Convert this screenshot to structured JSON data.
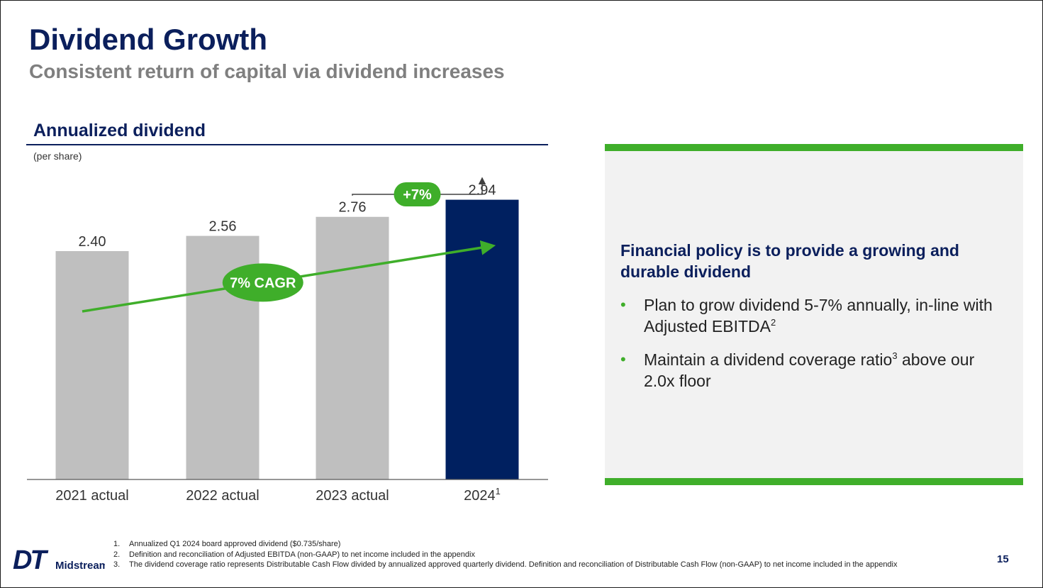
{
  "header": {
    "title": "Dividend Growth",
    "subtitle": "Consistent return of capital via dividend increases"
  },
  "section": {
    "title": "Annualized dividend",
    "unit_note": "(per share)"
  },
  "chart_data": {
    "type": "bar",
    "title": "Annualized dividend",
    "ylabel": "(per share)",
    "categories": [
      "2021 actual",
      "2022 actual",
      "2023 actual",
      "2024"
    ],
    "category_superscripts": [
      "",
      "",
      "",
      "1"
    ],
    "values": [
      2.4,
      2.56,
      2.76,
      2.94
    ],
    "value_labels": [
      "2.40",
      "2.56",
      "2.76",
      "2.94"
    ],
    "bar_colors": [
      "#bfbfbf",
      "#bfbfbf",
      "#bfbfbf",
      "#002060"
    ],
    "ylim": [
      0,
      3.25
    ],
    "grid": false,
    "annotations": {
      "cagr_label": "7% CAGR",
      "yoy_label": "+7%"
    }
  },
  "panel": {
    "heading": "Financial policy is to provide a growing and durable dividend",
    "bullets": [
      {
        "pre": "Plan to grow dividend 5-7% annually, in-line with Adjusted EBITDA",
        "sup": "2",
        "post": ""
      },
      {
        "pre": "Maintain a dividend coverage ratio",
        "sup": "3",
        "post": " above our 2.0x floor"
      }
    ]
  },
  "footnotes": [
    {
      "num": "1.",
      "text": "Annualized Q1 2024 board approved dividend ($0.735/share)"
    },
    {
      "num": "2.",
      "text": "Definition and reconciliation of Adjusted EBITDA (non-GAAP) to net income included in the appendix"
    },
    {
      "num": "3.",
      "text": "The dividend coverage ratio represents Distributable Cash Flow divided by annualized approved quarterly dividend. Definition and reconciliation of Distributable Cash Flow (non-GAAP) to net income included in the appendix"
    }
  ],
  "logo": {
    "mark": "DT",
    "word": "Midstream"
  },
  "page_number": "15",
  "colors": {
    "navy": "#0b1f5c",
    "bar_navy": "#002060",
    "gray_bar": "#bfbfbf",
    "green": "#3fae2a",
    "panel_bg": "#f2f2f2"
  }
}
